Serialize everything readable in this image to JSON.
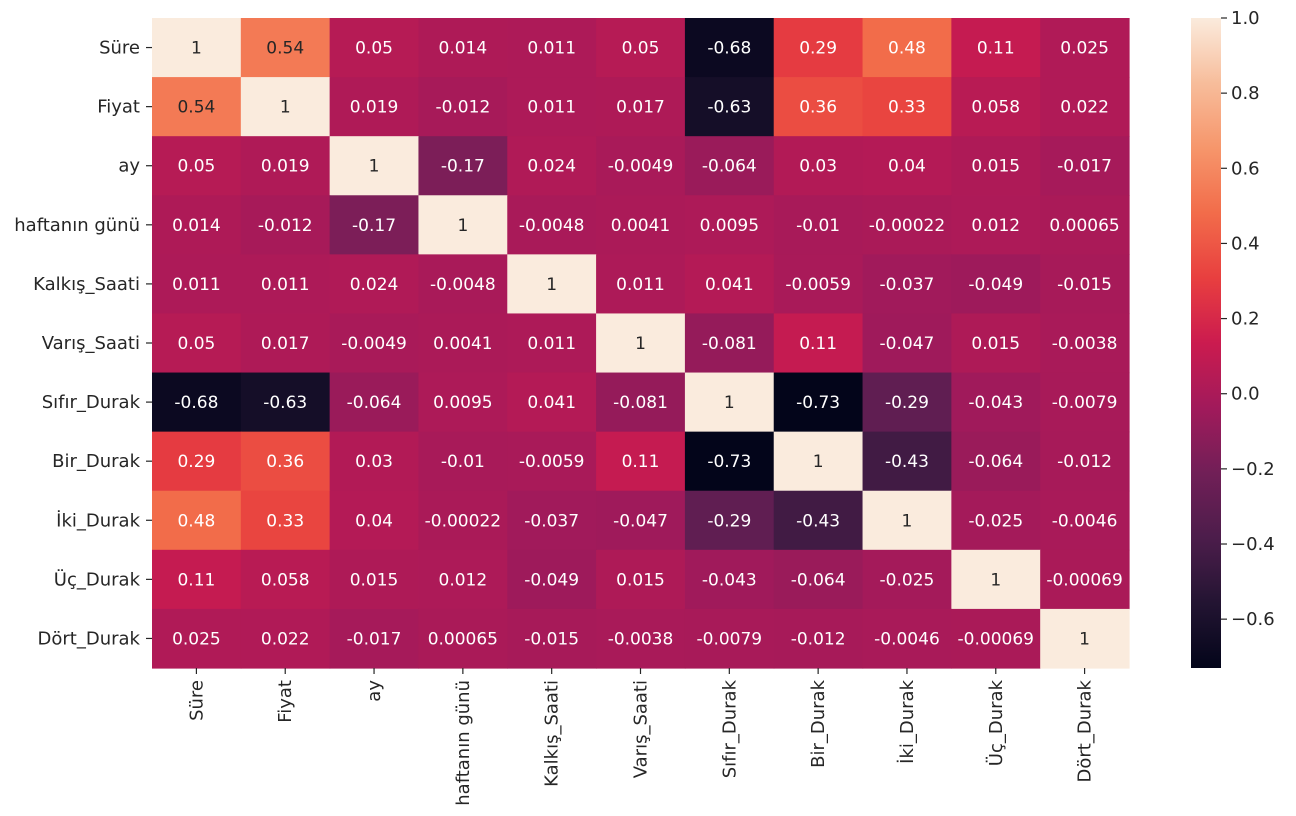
{
  "chart_data": {
    "type": "heatmap",
    "title": "",
    "xlabel": "",
    "ylabel": "",
    "colormap": "rocket",
    "value_range": [
      -0.73,
      1.0
    ],
    "labels": [
      "Süre",
      "Fiyat",
      "ay",
      "haftanın günü",
      "Kalkış_Saati",
      "Varış_Saati",
      "Sıfır_Durak",
      "Bir_Durak",
      "İki_Durak",
      "Üç_Durak",
      "Dört_Durak"
    ],
    "matrix": [
      [
        "1",
        "0.54",
        "0.05",
        "0.014",
        "0.011",
        "0.05",
        "-0.68",
        "0.29",
        "0.48",
        "0.11",
        "0.025"
      ],
      [
        "0.54",
        "1",
        "0.019",
        "-0.012",
        "0.011",
        "0.017",
        "-0.63",
        "0.36",
        "0.33",
        "0.058",
        "0.022"
      ],
      [
        "0.05",
        "0.019",
        "1",
        "-0.17",
        "0.024",
        "-0.0049",
        "-0.064",
        "0.03",
        "0.04",
        "0.015",
        "-0.017"
      ],
      [
        "0.014",
        "-0.012",
        "-0.17",
        "1",
        "-0.0048",
        "0.0041",
        "0.0095",
        "-0.01",
        "-0.00022",
        "0.012",
        "0.00065"
      ],
      [
        "0.011",
        "0.011",
        "0.024",
        "-0.0048",
        "1",
        "0.011",
        "0.041",
        "-0.0059",
        "-0.037",
        "-0.049",
        "-0.015"
      ],
      [
        "0.05",
        "0.017",
        "-0.0049",
        "0.0041",
        "0.011",
        "1",
        "-0.081",
        "0.11",
        "-0.047",
        "0.015",
        "-0.0038"
      ],
      [
        "-0.68",
        "-0.63",
        "-0.064",
        "0.0095",
        "0.041",
        "-0.081",
        "1",
        "-0.73",
        "-0.29",
        "-0.043",
        "-0.0079"
      ],
      [
        "0.29",
        "0.36",
        "0.03",
        "-0.01",
        "-0.0059",
        "0.11",
        "-0.73",
        "1",
        "-0.43",
        "-0.064",
        "-0.012"
      ],
      [
        "0.48",
        "0.33",
        "0.04",
        "-0.00022",
        "-0.037",
        "-0.047",
        "-0.29",
        "-0.43",
        "1",
        "-0.025",
        "-0.0046"
      ],
      [
        "0.11",
        "0.058",
        "0.015",
        "0.012",
        "-0.049",
        "0.015",
        "-0.043",
        "-0.064",
        "-0.025",
        "1",
        "-0.00069"
      ],
      [
        "0.025",
        "0.022",
        "-0.017",
        "0.00065",
        "-0.015",
        "-0.0038",
        "-0.0079",
        "-0.012",
        "-0.0046",
        "-0.00069",
        "1"
      ]
    ],
    "colorbar_ticks": [
      "1.0",
      "0.8",
      "0.6",
      "0.4",
      "0.2",
      "0.0",
      "−0.2",
      "−0.4",
      "−0.6"
    ]
  }
}
